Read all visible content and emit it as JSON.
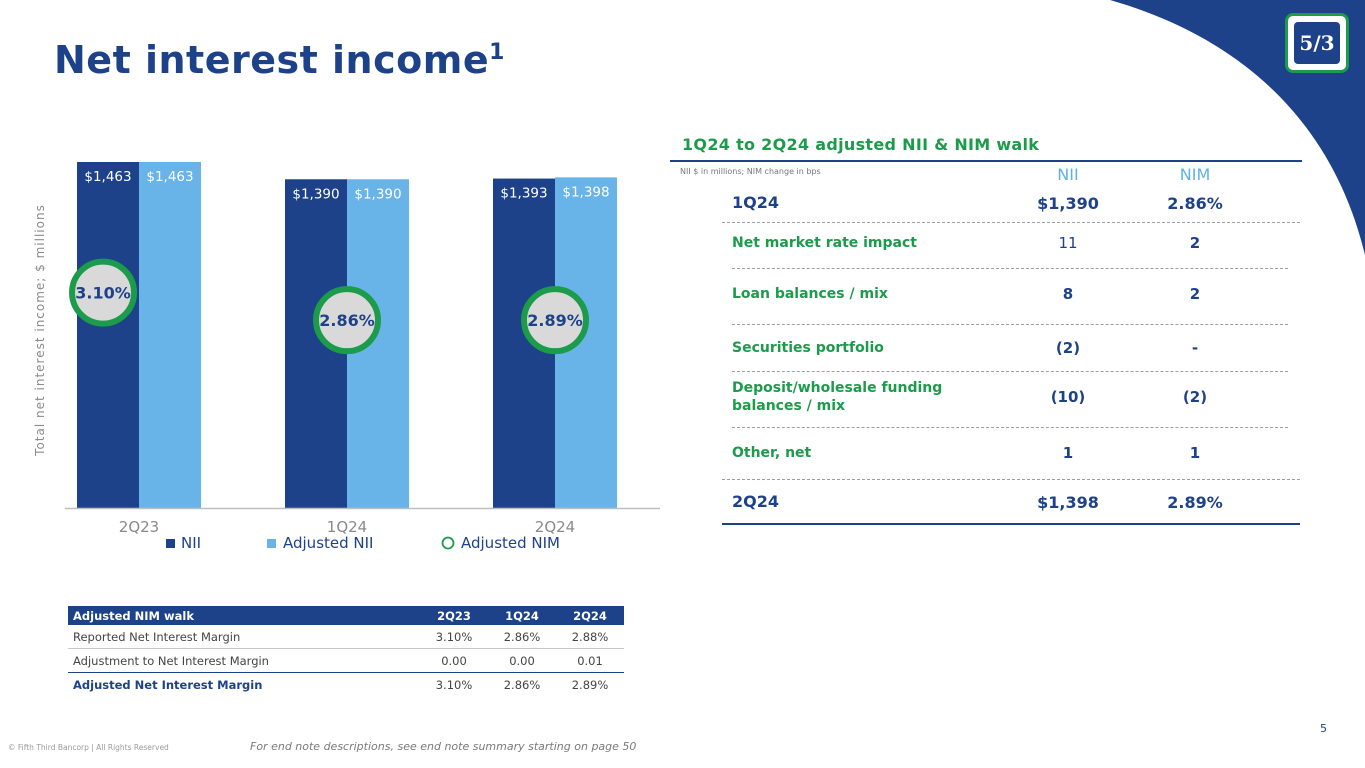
{
  "title": "Net interest income",
  "title_superscript": "1",
  "logo_text": "5/3",
  "colors": {
    "navy": "#1d428a",
    "lightblue": "#68b3e8",
    "green": "#1c9b4b",
    "circle_fill": "#d9d9d9"
  },
  "chart_data": {
    "type": "bar",
    "categories": [
      "2Q23",
      "1Q24",
      "2Q24"
    ],
    "series": [
      {
        "name": "NII",
        "values": [
          1463,
          1390,
          1393
        ],
        "labels": [
          "$1,463",
          "$1,390",
          "$1,393"
        ]
      },
      {
        "name": "Adjusted NII",
        "values": [
          1463,
          1390,
          1398
        ],
        "labels": [
          "$1,463",
          "$1,390",
          "$1,398"
        ]
      }
    ],
    "overlay": {
      "name": "Adjusted NIM",
      "values": [
        3.1,
        2.86,
        2.89
      ],
      "labels": [
        "3.10%",
        "2.86%",
        "2.89%"
      ]
    },
    "ylabel": "Total net interest income; $ millions",
    "ylim": [
      0,
      1463
    ],
    "legend": [
      "NII",
      "Adjusted NII",
      "Adjusted NIM"
    ],
    "legend_position": "bottom"
  },
  "walk": {
    "title": "1Q24 to 2Q24 adjusted NII & NIM walk",
    "subtitle": "NII $ in millions; NIM change in bps",
    "col_nii": "NII",
    "col_nim": "NIM",
    "start": {
      "label": "1Q24",
      "nii": "$1,390",
      "nim": "2.86%"
    },
    "rows": [
      {
        "label": "Net market rate impact",
        "nii": "11",
        "nim": "2"
      },
      {
        "label": "Loan balances / mix",
        "nii": "8",
        "nim": "2"
      },
      {
        "label": "Securities portfolio",
        "nii": "(2)",
        "nim": "-"
      },
      {
        "label": "Deposit/wholesale funding balances / mix",
        "nii": "(10)",
        "nim": "(2)"
      },
      {
        "label": "Other, net",
        "nii": "1",
        "nim": "1"
      }
    ],
    "end": {
      "label": "2Q24",
      "nii": "$1,398",
      "nim": "2.89%"
    }
  },
  "nim_table": {
    "header": [
      "Adjusted NIM walk",
      "2Q23",
      "1Q24",
      "2Q24"
    ],
    "rows": [
      [
        "Reported Net Interest Margin",
        "3.10%",
        "2.86%",
        "2.88%"
      ],
      [
        "Adjustment to Net Interest Margin",
        "0.00",
        "0.00",
        "0.01"
      ],
      [
        "Adjusted Net Interest Margin",
        "3.10%",
        "2.86%",
        "2.89%"
      ]
    ]
  },
  "footer": {
    "copyright": "© Fifth Third Bancorp | All Rights Reserved",
    "endnote": "For end note descriptions, see end note summary starting on page 50",
    "page": "5"
  }
}
